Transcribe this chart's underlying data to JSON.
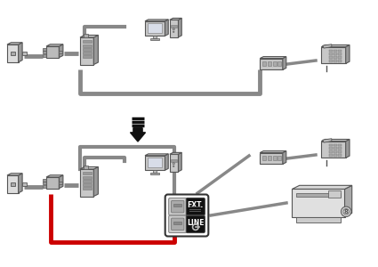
{
  "bg_color": "#ffffff",
  "gray": "#888888",
  "dgray": "#555555",
  "lgray": "#bbbbbb",
  "red": "#cc0000",
  "black": "#111111",
  "white": "#ffffff",
  "cream": "#dddddd",
  "dark": "#333333",
  "ext_label": "EXT.",
  "line_label": "LINE"
}
